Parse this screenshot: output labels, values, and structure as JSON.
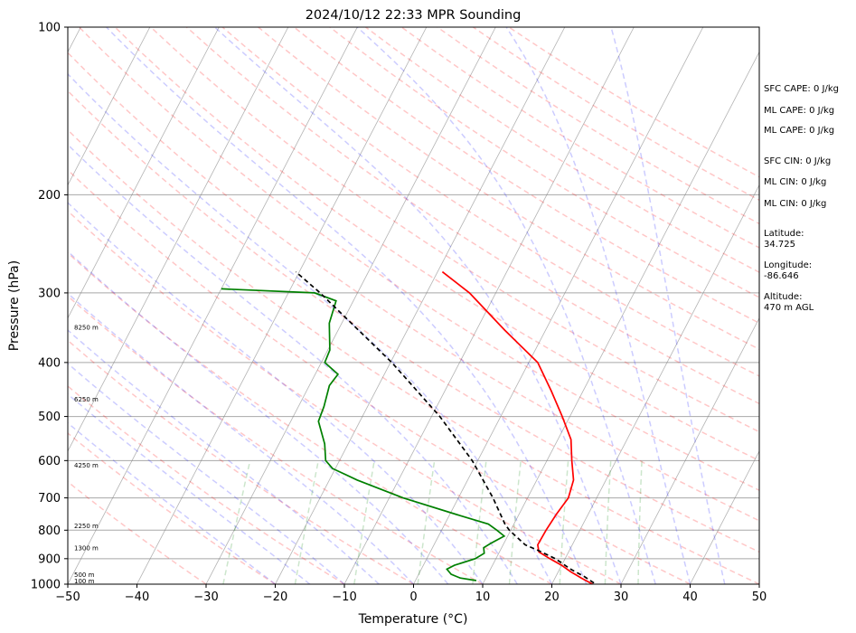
{
  "chart_data": {
    "type": "line",
    "title": "2024/10/12 22:33 MPR Sounding",
    "xlabel": "Temperature (°C)",
    "ylabel": "Pressure (hPa)",
    "xlim": [
      -50,
      50
    ],
    "ylim": [
      1000,
      100
    ],
    "y_scale": "log",
    "skew": true,
    "grid": true,
    "x_ticks": [
      "−50",
      "−40",
      "−30",
      "−20",
      "−10",
      "0",
      "10",
      "20",
      "30",
      "40",
      "50"
    ],
    "y_ticks": [
      "1000",
      "900",
      "800",
      "700",
      "600",
      "500",
      "400",
      "300",
      "200",
      "100"
    ],
    "series": [
      {
        "color": "#ff0000",
        "style": "solid",
        "points": [
          [
            1000,
            25.9
          ],
          [
            975,
            23.8
          ],
          [
            950,
            21.8
          ],
          [
            925,
            20.0
          ],
          [
            900,
            17.8
          ],
          [
            875,
            15.7
          ],
          [
            850,
            15.0
          ],
          [
            800,
            15.1
          ],
          [
            750,
            15.4
          ],
          [
            700,
            15.9
          ],
          [
            650,
            15.3
          ],
          [
            600,
            13.6
          ],
          [
            550,
            11.9
          ],
          [
            500,
            8.9
          ],
          [
            450,
            5.4
          ],
          [
            400,
            1.3
          ],
          [
            350,
            -5.9
          ],
          [
            300,
            -13.8
          ],
          [
            275,
            -19.3
          ]
        ]
      },
      {
        "color": "#008000",
        "style": "solid",
        "points": [
          [
            985,
            8.8
          ],
          [
            975,
            6.3
          ],
          [
            960,
            4.7
          ],
          [
            940,
            3.7
          ],
          [
            925,
            4.5
          ],
          [
            900,
            7.0
          ],
          [
            880,
            7.9
          ],
          [
            860,
            7.4
          ],
          [
            845,
            8.1
          ],
          [
            820,
            9.5
          ],
          [
            800,
            8.0
          ],
          [
            780,
            6.3
          ],
          [
            750,
            1.0
          ],
          [
            700,
            -8.0
          ],
          [
            650,
            -16.0
          ],
          [
            620,
            -20.4
          ],
          [
            600,
            -22.0
          ],
          [
            560,
            -23.4
          ],
          [
            510,
            -26.0
          ],
          [
            480,
            -26.3
          ],
          [
            440,
            -27.1
          ],
          [
            420,
            -26.7
          ],
          [
            400,
            -29.5
          ],
          [
            380,
            -29.7
          ],
          [
            340,
            -31.8
          ],
          [
            310,
            -32.5
          ],
          [
            300,
            -36.2
          ],
          [
            295,
            -50.0
          ]
        ]
      },
      {
        "color": "#000000",
        "style": "dashed",
        "points": [
          [
            995,
            26.0
          ],
          [
            970,
            24.2
          ],
          [
            940,
            21.6
          ],
          [
            900,
            18.6
          ],
          [
            870,
            15.5
          ],
          [
            850,
            13.2
          ],
          [
            800,
            9.8
          ],
          [
            780,
            8.7
          ],
          [
            700,
            5.0
          ],
          [
            600,
            -0.8
          ],
          [
            500,
            -8.8
          ],
          [
            400,
            -19.8
          ],
          [
            300,
            -35.4
          ],
          [
            275,
            -40.5
          ]
        ]
      }
    ],
    "height_labels": [
      {
        "p": 985,
        "text": "100 m"
      },
      {
        "p": 960,
        "text": "500 m"
      },
      {
        "p": 860,
        "text": "1300 m"
      },
      {
        "p": 785,
        "text": "2250 m"
      },
      {
        "p": 610,
        "text": "4250 m"
      },
      {
        "p": 465,
        "text": "6250 m"
      },
      {
        "p": 345,
        "text": "8250 m"
      }
    ],
    "background_lines": {
      "dry_adiabats_color": "#ff0000",
      "moist_adiabats_color": "#0000ff",
      "mixing_ratio_color": "#008000",
      "isotherm_color": "#808080"
    }
  },
  "indices": {
    "sfc_cape": "SFC CAPE: 0 J/kg",
    "ml_cape_1": "ML CAPE: 0 J/kg",
    "ml_cape_2": "ML CAPE: 0 J/kg",
    "sfc_cin": "SFC CIN: 0 J/kg",
    "ml_cin_1": "ML CIN: 0 J/kg",
    "ml_cin_2": "ML CIN: 0 J/kg",
    "latitude": "Latitude:\n34.725",
    "longitude": "Longitude:\n-86.646",
    "altitude": "Altitude:\n470 m AGL"
  }
}
